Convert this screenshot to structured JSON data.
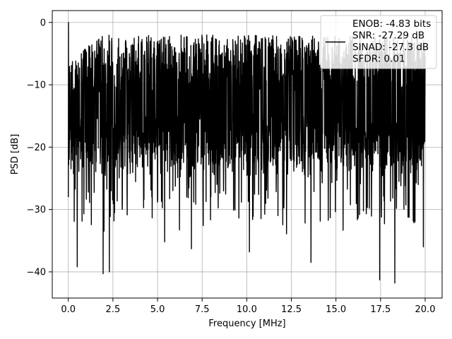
{
  "chart_data": {
    "type": "line",
    "title": "",
    "xlabel": "Frequency [MHz]",
    "ylabel": "PSD [dB]",
    "xlim": [
      -0.9,
      20.95
    ],
    "ylim": [
      -44.2,
      1.9
    ],
    "grid": true,
    "legend_placement": "top-right",
    "x_ticks": [
      0.0,
      2.5,
      5.0,
      7.5,
      10.0,
      12.5,
      15.0,
      17.5,
      20.0
    ],
    "x_tick_labels": [
      "0.0",
      "2.5",
      "5.0",
      "7.5",
      "10.0",
      "12.5",
      "15.0",
      "17.5",
      "20.0"
    ],
    "y_ticks": [
      0,
      -10,
      -20,
      -30,
      -40
    ],
    "y_tick_labels": [
      "0",
      "−10",
      "−20",
      "−30",
      "−40"
    ],
    "legend": [
      "ENOB: -4.83 bits",
      "SNR: -27.29 dB",
      "SINAD: -27.3 dB",
      "SFDR: 0.01"
    ],
    "series": [
      {
        "color": "#000000",
        "sample_count": 2000,
        "x_range": [
          0.0,
          20.0
        ],
        "x_step": 0.01,
        "y_peak": 0.0,
        "y_floor_band": [
          -22,
          -14
        ],
        "y_ceiling_band": [
          -5,
          -2
        ],
        "notable_dips": [
          {
            "x": 0.5,
            "y": -39.2
          },
          {
            "x": 1.95,
            "y": -40.3
          },
          {
            "x": 2.3,
            "y": -40.0
          },
          {
            "x": 13.6,
            "y": -38.5
          },
          {
            "x": 17.45,
            "y": -41.3
          },
          {
            "x": 18.3,
            "y": -41.8
          },
          {
            "x": 19.9,
            "y": -36.0
          },
          {
            "x": 10.15,
            "y": -36.8
          },
          {
            "x": 5.4,
            "y": -35.2
          },
          {
            "x": 6.9,
            "y": -36.3
          }
        ]
      }
    ]
  }
}
